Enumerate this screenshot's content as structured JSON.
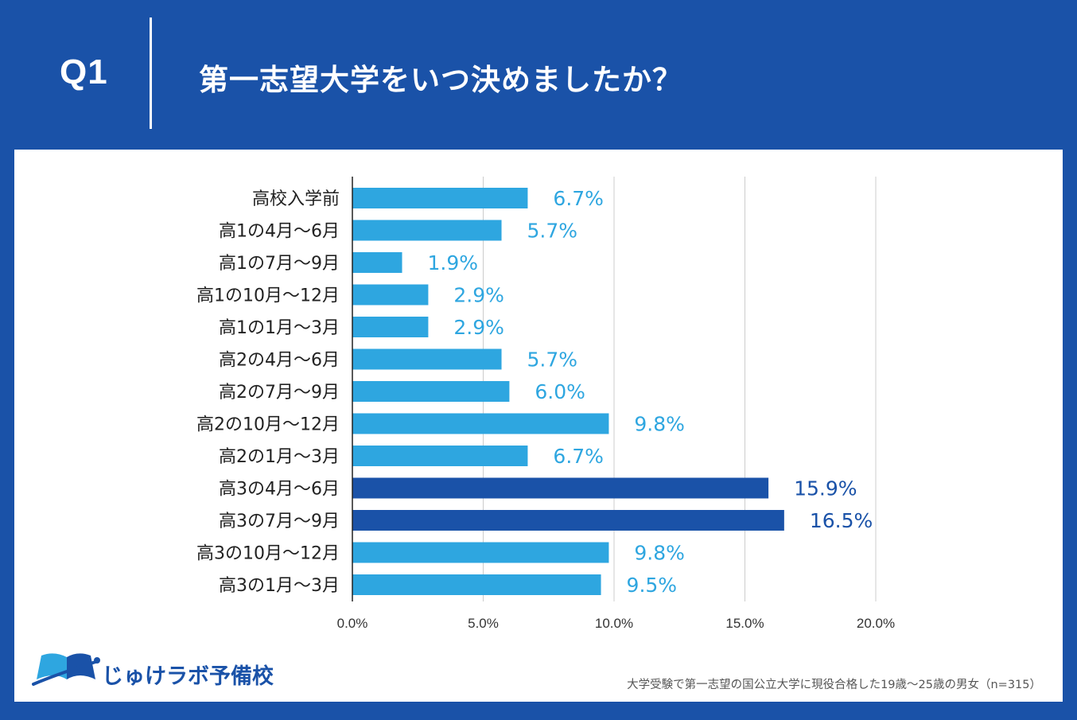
{
  "header": {
    "question_number": "Q1",
    "title": "第一志望大学をいつ決めましたか？"
  },
  "chart_data": {
    "type": "bar",
    "orientation": "horizontal",
    "title": "第一志望大学をいつ決めましたか？",
    "categories": [
      "高校入学前",
      "高1の4月～6月",
      "高1の7月～9月",
      "高1の10月～12月",
      "高1の1月～3月",
      "高2の4月～6月",
      "高2の7月～9月",
      "高2の10月～12月",
      "高2の1月～3月",
      "高3の4月～6月",
      "高3の7月～9月",
      "高3の10月～12月",
      "高3の1月～3月"
    ],
    "values": [
      6.7,
      5.7,
      1.9,
      2.9,
      2.9,
      5.7,
      6.0,
      9.8,
      6.7,
      15.9,
      16.5,
      9.8,
      9.5
    ],
    "value_labels": [
      "6.7%",
      "5.7%",
      "1.9%",
      "2.9%",
      "2.9%",
      "5.7%",
      "6.0%",
      "9.8%",
      "6.7%",
      "15.9%",
      "16.5%",
      "9.8%",
      "9.5%"
    ],
    "highlighted": [
      false,
      false,
      false,
      false,
      false,
      false,
      false,
      false,
      false,
      true,
      true,
      false,
      false
    ],
    "xlim": [
      0,
      20
    ],
    "xticks": [
      0,
      5,
      10,
      15,
      20
    ],
    "xtick_labels": [
      "0.0%",
      "5.0%",
      "10.0%",
      "15.0%",
      "20.0%"
    ],
    "grid": true,
    "colors": {
      "normal": "#2ea6e0",
      "highlight": "#1a52a8",
      "grid": "#cccccc",
      "axis": "#222222"
    }
  },
  "footer": {
    "logo_text": "じゅけラボ予備校",
    "source": "大学受験で第一志望の国公立大学に現役合格した19歳～25歳の男女（n=315）"
  }
}
